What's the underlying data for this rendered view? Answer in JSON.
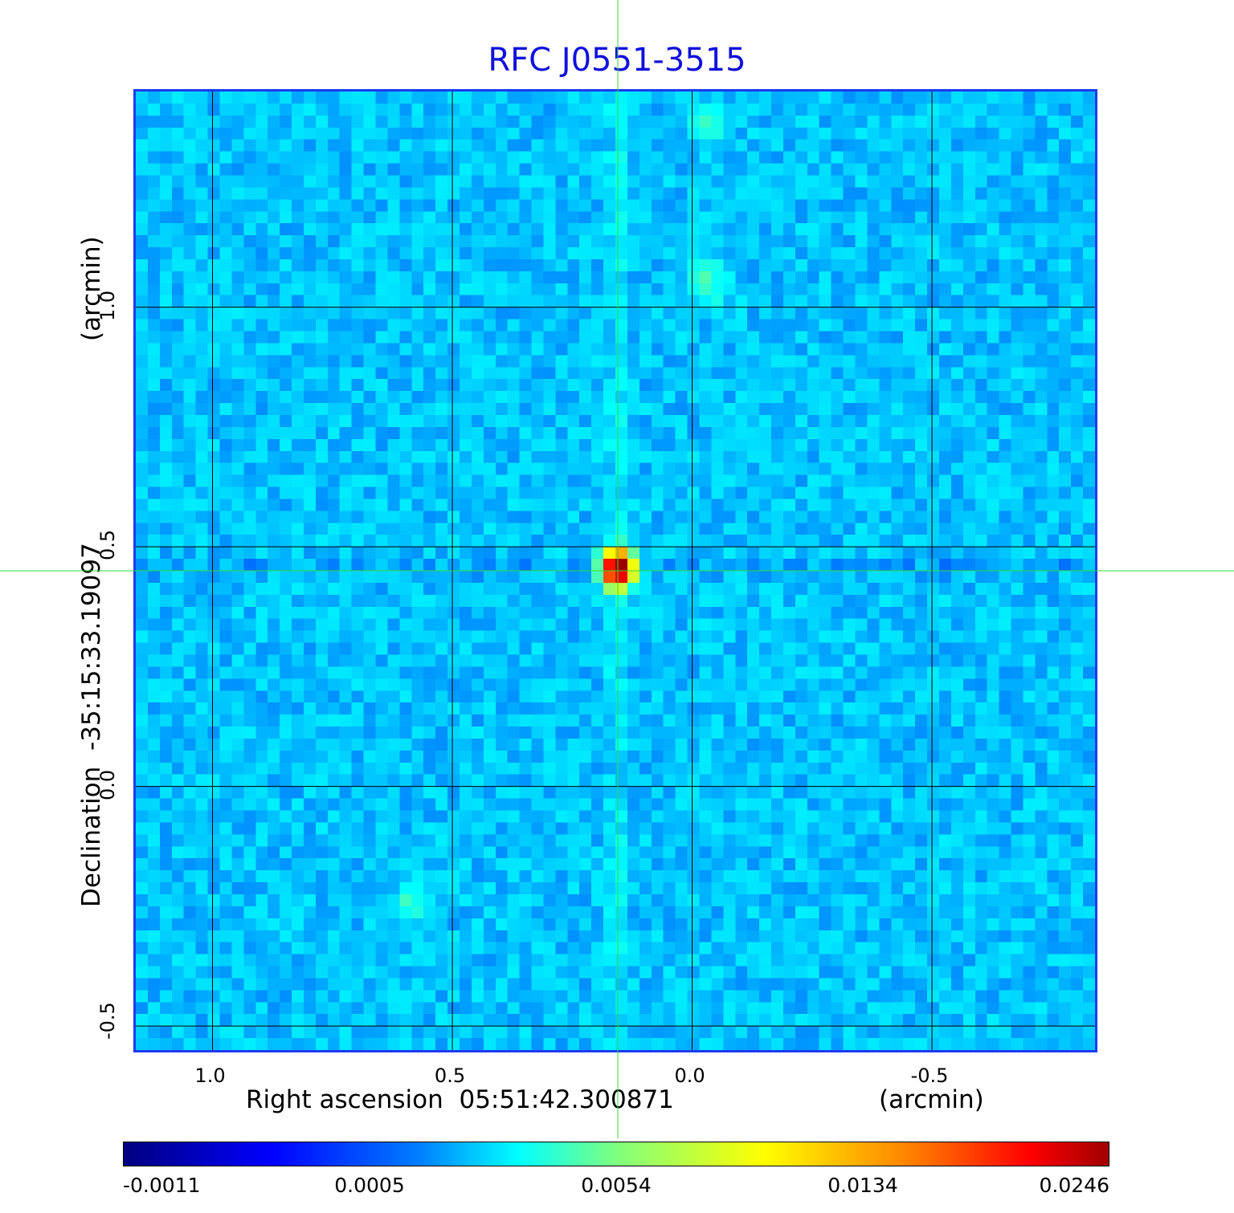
{
  "chart_data": {
    "type": "heatmap",
    "title": "RFC J0551-3515",
    "xlabel": "Right ascension  05:51:42.300871",
    "x_unit": "(arcmin)",
    "ylabel": "Declination  -35:15:33.19097",
    "y_unit": "(arcmin)",
    "xlim": [
      1.16,
      -0.85
    ],
    "ylim": [
      -0.56,
      1.45
    ],
    "x_ticks": [
      1.0,
      0.5,
      0.0,
      -0.5
    ],
    "x_tick_labels": [
      "1.0",
      "0.5",
      "0.0",
      "-0.5"
    ],
    "y_ticks": [
      1.0,
      0.5,
      0.0,
      -0.5
    ],
    "y_tick_labels": [
      "1.0",
      "0.5",
      "0.0",
      "-0.5"
    ],
    "grid": true,
    "crosshair": {
      "x": 0.15,
      "y": 0.445
    },
    "peak": {
      "x": 0.15,
      "y": 0.45,
      "value": 0.0246
    },
    "secondary_features": [
      {
        "x": -0.04,
        "y": 1.05,
        "value": 0.0022
      },
      {
        "x": 0.58,
        "y": -0.25,
        "value": 0.0018
      },
      {
        "x": -0.04,
        "y": 1.38,
        "value": 0.0015
      }
    ],
    "colorbar": {
      "colormap": "jet",
      "tick_values": [
        -0.0011,
        0.0005,
        0.0054,
        0.0134,
        0.0246
      ],
      "tick_labels": [
        "-0.0011",
        "0.0005",
        "0.0054",
        "0.0134",
        "0.0246"
      ]
    },
    "colors": {
      "title": "#1111dd",
      "frame": "#1a3cf0",
      "crosshair": "#33dd33",
      "grid": "#000000"
    }
  }
}
